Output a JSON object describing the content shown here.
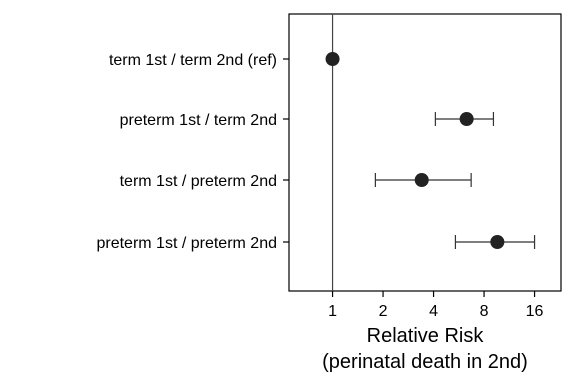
{
  "chart_data": {
    "type": "forest",
    "xscale": "log2",
    "xlim": [
      0.55,
      23
    ],
    "xticks": [
      1,
      2,
      4,
      8,
      16
    ],
    "xtick_labels": [
      "1",
      "2",
      "4",
      "8",
      "16"
    ],
    "xlabel_line1": "Relative Risk",
    "xlabel_line2": "(perinatal death in 2nd)",
    "reference_value": 1,
    "rows": [
      {
        "label": "term 1st / term 2nd (ref)",
        "estimate": 1.0,
        "lower": null,
        "upper": null
      },
      {
        "label": "preterm 1st / term 2nd",
        "estimate": 6.3,
        "lower": 4.1,
        "upper": 9.1
      },
      {
        "label": "term 1st / preterm 2nd",
        "estimate": 3.4,
        "lower": 1.8,
        "upper": 6.7
      },
      {
        "label": "preterm 1st / preterm 2nd",
        "estimate": 9.6,
        "lower": 5.4,
        "upper": 16.0
      }
    ],
    "colors": {
      "point": "#222222",
      "interval": "#333333",
      "frame": "#000000",
      "refline": "#444444"
    }
  }
}
